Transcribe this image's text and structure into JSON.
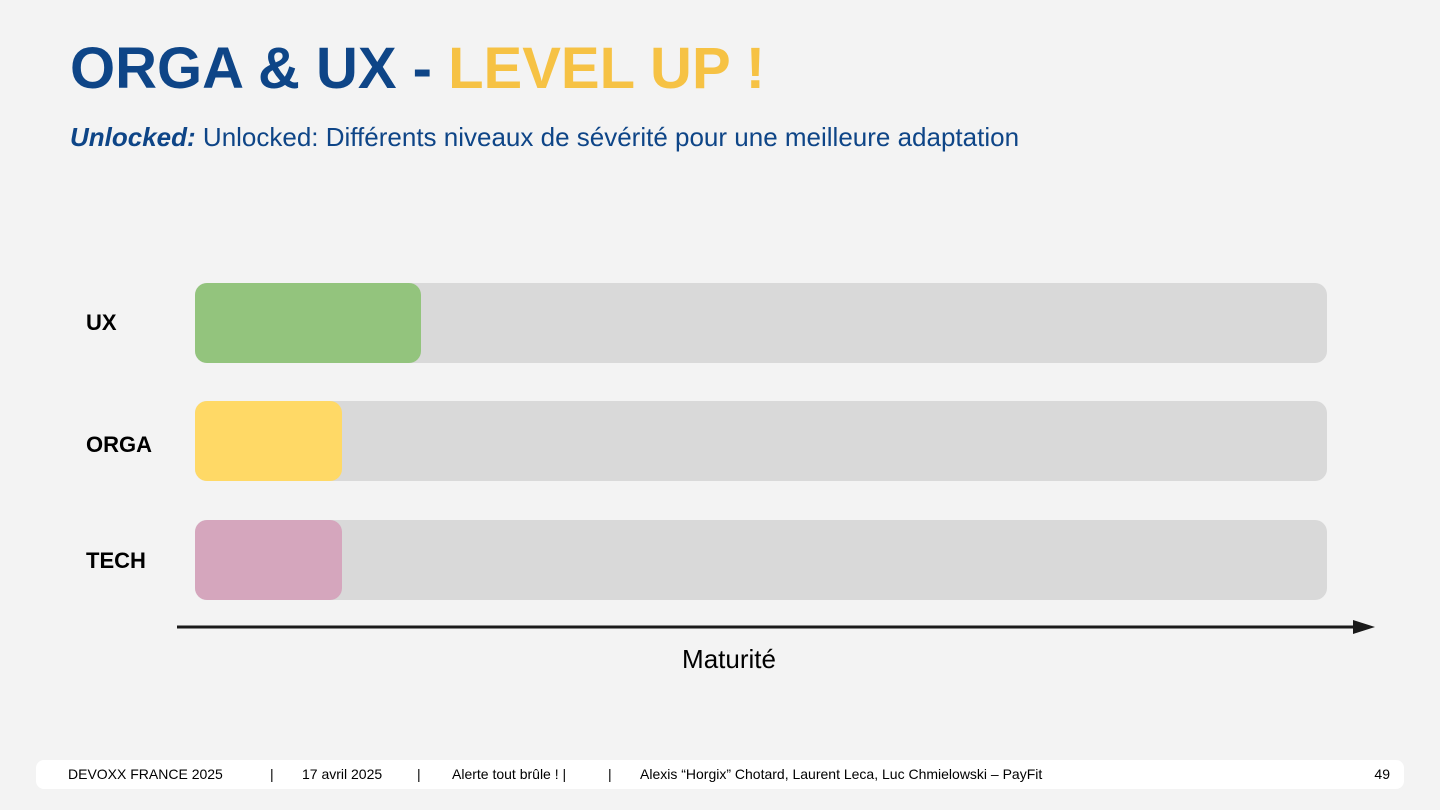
{
  "slide": {
    "title_main": "ORGA & UX - ",
    "title_accent": "LEVEL UP !",
    "subtitle_lead": "Unlocked:",
    "subtitle_text": " Unlocked: Différents niveaux de sévérité pour une meilleure adaptation"
  },
  "maturity": {
    "rows": [
      {
        "label": "UX",
        "level": 0.2,
        "color": "#93c47d"
      },
      {
        "label": "ORGA",
        "level": 0.13,
        "color": "#ffd966"
      },
      {
        "label": "TECH",
        "level": 0.13,
        "color": "#d5a6bd"
      }
    ],
    "axis_label": "Maturité"
  },
  "footer": {
    "event": "DEVOXX FRANCE 2025",
    "sep1": "|",
    "date": "17 avril 2025",
    "sep2": "|",
    "talk": "Alerte tout brûle ! |",
    "sep3": "|",
    "authors": "Alexis “Horgix” Chotard, Laurent Leca, Luc Chmielowski – PayFit",
    "page": "49"
  }
}
